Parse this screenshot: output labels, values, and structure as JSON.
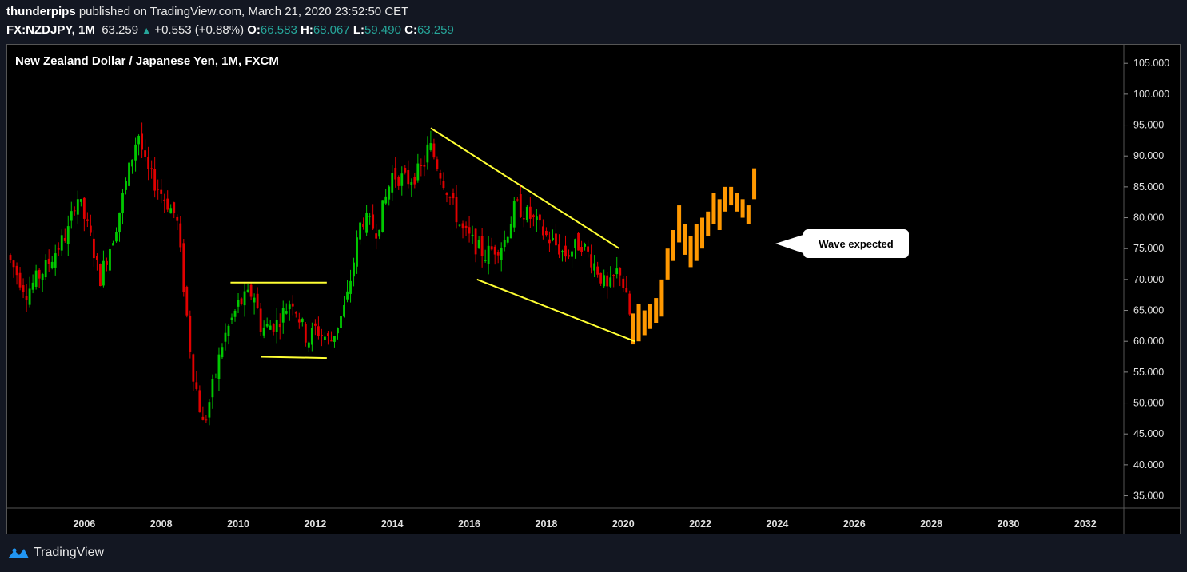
{
  "header": {
    "author": "thunderpips",
    "published_text": "published on TradingView.com, March 21, 2020 23:52:50 CET",
    "symbol": "FX:NZDJPY, 1M",
    "last": "63.259",
    "change": "+0.553 (+0.88%)",
    "o_label": "O:",
    "o_value": "66.583",
    "h_label": "H:",
    "h_value": "68.067",
    "l_label": "L:",
    "l_value": "59.490",
    "c_label": "C:",
    "c_value": "63.259"
  },
  "footer": {
    "brand": "TradingView"
  },
  "colors": {
    "up": "#00c800",
    "down": "#e00000",
    "projection": "#ff9800",
    "trendline": "#ffff33",
    "accent": "#26a69a"
  },
  "chart_data": {
    "type": "candlestick",
    "title": "New Zealand Dollar / Japanese Yen, 1M, FXCM",
    "y_ticks": [
      "105.000",
      "100.000",
      "95.000",
      "90.000",
      "85.000",
      "80.000",
      "75.000",
      "70.000",
      "65.000",
      "60.000",
      "55.000",
      "50.000",
      "45.000",
      "40.000",
      "35.000"
    ],
    "x_ticks": [
      "2006",
      "2008",
      "2010",
      "2012",
      "2014",
      "2016",
      "2018",
      "2020",
      "2022",
      "2024",
      "2026",
      "2028",
      "2030",
      "2032"
    ],
    "ylim": [
      33,
      108
    ],
    "xlim": [
      2004.0,
      2033.0
    ],
    "price_path": [
      [
        2004.0,
        74
      ],
      [
        2004.5,
        68
      ],
      [
        2005.0,
        72
      ],
      [
        2005.6,
        78
      ],
      [
        2005.8,
        84
      ],
      [
        2006.2,
        76
      ],
      [
        2006.4,
        70
      ],
      [
        2006.8,
        78
      ],
      [
        2007.4,
        94
      ],
      [
        2007.6,
        88
      ],
      [
        2008.0,
        84
      ],
      [
        2008.4,
        80
      ],
      [
        2008.8,
        56
      ],
      [
        2009.1,
        46
      ],
      [
        2009.6,
        60
      ],
      [
        2010.0,
        66
      ],
      [
        2010.4,
        68
      ],
      [
        2010.6,
        62
      ],
      [
        2011.0,
        63
      ],
      [
        2011.4,
        67
      ],
      [
        2011.8,
        60
      ],
      [
        2012.0,
        62
      ],
      [
        2012.4,
        60
      ],
      [
        2012.8,
        66
      ],
      [
        2013.2,
        80
      ],
      [
        2013.6,
        78
      ],
      [
        2014.0,
        87
      ],
      [
        2014.4,
        86
      ],
      [
        2014.8,
        88
      ],
      [
        2014.95,
        92
      ],
      [
        2015.4,
        85
      ],
      [
        2015.8,
        78
      ],
      [
        2016.4,
        74
      ],
      [
        2016.9,
        76
      ],
      [
        2017.2,
        82
      ],
      [
        2017.6,
        80
      ],
      [
        2018.0,
        77
      ],
      [
        2018.5,
        74
      ],
      [
        2018.9,
        76
      ],
      [
        2019.3,
        72
      ],
      [
        2019.6,
        68
      ],
      [
        2019.9,
        72
      ],
      [
        2020.2,
        63.259
      ]
    ],
    "projection_bars": [
      [
        2020.25,
        59.5,
        64.5
      ],
      [
        2020.4,
        60,
        66
      ],
      [
        2020.55,
        61,
        65
      ],
      [
        2020.7,
        62,
        66
      ],
      [
        2020.85,
        63,
        67
      ],
      [
        2021.0,
        64,
        70
      ],
      [
        2021.15,
        70,
        75
      ],
      [
        2021.3,
        73,
        78
      ],
      [
        2021.45,
        76,
        82
      ],
      [
        2021.6,
        74,
        79
      ],
      [
        2021.75,
        72,
        77
      ],
      [
        2021.9,
        73,
        79
      ],
      [
        2022.05,
        75,
        80
      ],
      [
        2022.2,
        77,
        81
      ],
      [
        2022.35,
        79,
        84
      ],
      [
        2022.5,
        78,
        83
      ],
      [
        2022.65,
        81,
        85
      ],
      [
        2022.8,
        82,
        85
      ],
      [
        2022.95,
        81,
        84
      ],
      [
        2023.1,
        80,
        83
      ],
      [
        2023.25,
        79,
        82
      ],
      [
        2023.4,
        83,
        88
      ]
    ],
    "trendlines": [
      {
        "x1": 2009.8,
        "y1": 69.5,
        "x2": 2012.3,
        "y2": 69.5
      },
      {
        "x1": 2010.6,
        "y1": 57.5,
        "x2": 2012.3,
        "y2": 57.3
      },
      {
        "x1": 2015.0,
        "y1": 94.5,
        "x2": 2019.9,
        "y2": 75.0
      },
      {
        "x1": 2016.2,
        "y1": 70.0,
        "x2": 2020.3,
        "y2": 60.0
      }
    ],
    "annotation": "Wave expected"
  }
}
